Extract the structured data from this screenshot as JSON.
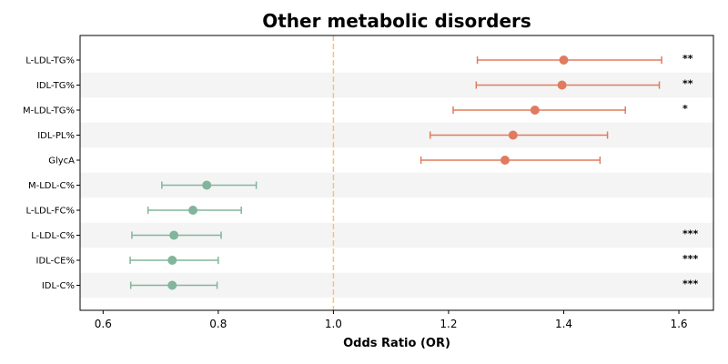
{
  "chart_data": {
    "type": "forest",
    "title": "Other metabolic disorders",
    "xlabel": "Odds Ratio (OR)",
    "xlim": [
      0.56,
      1.66
    ],
    "xticks": [
      0.6,
      0.8,
      1.0,
      1.2,
      1.4,
      1.6
    ],
    "xtick_labels": [
      "0.6",
      "0.8",
      "1.0",
      "1.2",
      "1.4",
      "1.6"
    ],
    "reference_line": 1.0,
    "colors": {
      "positive": "#e07b5f",
      "negative": "#82b59c",
      "reference": "#f5c27a",
      "band": "#f4f4f4"
    },
    "rows": [
      {
        "label": "L-LDL-TG%",
        "or": 1.4,
        "lo": 1.25,
        "hi": 1.57,
        "sig": "**"
      },
      {
        "label": "IDL-TG%",
        "or": 1.397,
        "lo": 1.248,
        "hi": 1.566,
        "sig": "**"
      },
      {
        "label": "M-LDL-TG%",
        "or": 1.35,
        "lo": 1.208,
        "hi": 1.507,
        "sig": "*"
      },
      {
        "label": "IDL-PL%",
        "or": 1.312,
        "lo": 1.168,
        "hi": 1.476,
        "sig": ""
      },
      {
        "label": "GlycA",
        "or": 1.298,
        "lo": 1.152,
        "hi": 1.463,
        "sig": ""
      },
      {
        "label": "M-LDL-C%",
        "or": 0.78,
        "lo": 0.702,
        "hi": 0.866,
        "sig": ""
      },
      {
        "label": "L-LDL-FC%",
        "or": 0.756,
        "lo": 0.678,
        "hi": 0.84,
        "sig": ""
      },
      {
        "label": "L-LDL-C%",
        "or": 0.723,
        "lo": 0.65,
        "hi": 0.805,
        "sig": "***"
      },
      {
        "label": "IDL-CE%",
        "or": 0.72,
        "lo": 0.647,
        "hi": 0.8,
        "sig": "***"
      },
      {
        "label": "IDL-C%",
        "or": 0.72,
        "lo": 0.648,
        "hi": 0.798,
        "sig": "***"
      }
    ]
  }
}
